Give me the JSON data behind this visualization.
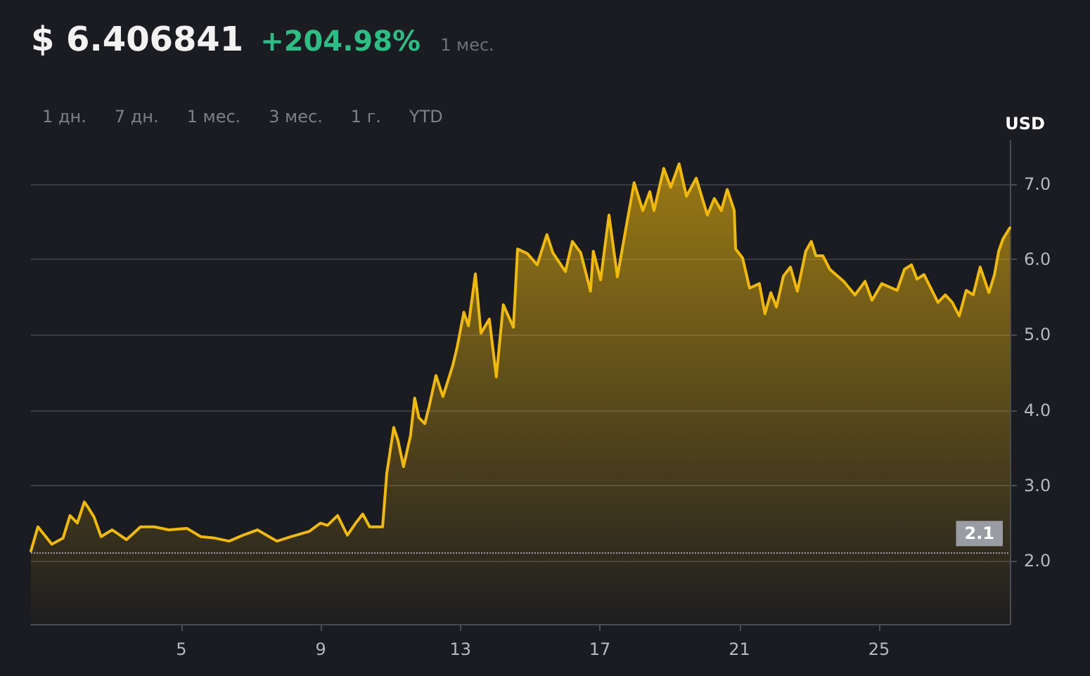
{
  "chart_data": {
    "type": "area",
    "title": "$ 6.406841",
    "subtitle": "+204.98%",
    "ylabel": "USD",
    "annotations": [
      "1 мес.",
      "1 дн.",
      "7 дн.",
      "1 мес.",
      "3 мес.",
      "1 г.",
      "YTD"
    ],
    "x": [
      0.69,
      0.89,
      1.29,
      1.61,
      1.81,
      2.02,
      2.22,
      2.34,
      2.5,
      2.7,
      3.02,
      3.43,
      3.83,
      4.23,
      4.64,
      5.16,
      5.56,
      5.97,
      6.37,
      6.77,
      7.18,
      7.74,
      8.15,
      8.67,
      8.99,
      9.19,
      9.48,
      9.76,
      10.0,
      10.2,
      10.4,
      10.77,
      10.89,
      11.09,
      11.21,
      11.37,
      11.57,
      11.69,
      11.81,
      11.98,
      12.1,
      12.3,
      12.5,
      12.78,
      12.9,
      13.1,
      13.23,
      13.43,
      13.59,
      13.83,
      14.03,
      14.23,
      14.52,
      14.64,
      14.92,
      15.2,
      15.48,
      15.65,
      16.01,
      16.21,
      16.45,
      16.73,
      16.81,
      17.02,
      17.26,
      17.5,
      17.74,
      17.98,
      18.23,
      18.43,
      18.55,
      18.83,
      19.03,
      19.27,
      19.48,
      19.76,
      20.08,
      20.28,
      20.48,
      20.65,
      20.85,
      20.89,
      21.09,
      21.29,
      21.57,
      21.73,
      21.9,
      22.06,
      22.26,
      22.46,
      22.66,
      22.9,
      23.06,
      23.19,
      23.39,
      23.59,
      23.99,
      24.31,
      24.6,
      24.8,
      25.08,
      25.52,
      25.73,
      25.93,
      26.09,
      26.29,
      26.69,
      26.9,
      27.1,
      27.3,
      27.5,
      27.7,
      27.9,
      28.15,
      28.31,
      28.43,
      28.55,
      28.75
    ],
    "series": [
      {
        "color": "#f0b90b",
        "values": [
          2.13,
          2.45,
          2.22,
          2.3,
          2.6,
          2.5,
          2.78,
          2.7,
          2.58,
          2.32,
          2.41,
          2.28,
          2.45,
          2.45,
          2.41,
          2.43,
          2.32,
          2.3,
          2.26,
          2.34,
          2.41,
          2.26,
          2.32,
          2.39,
          2.5,
          2.47,
          2.6,
          2.34,
          2.5,
          2.62,
          2.45,
          2.45,
          3.16,
          3.77,
          3.6,
          3.25,
          3.66,
          4.16,
          3.9,
          3.82,
          4.04,
          4.46,
          4.18,
          4.59,
          4.82,
          5.3,
          5.12,
          5.81,
          5.02,
          5.21,
          4.44,
          5.4,
          5.1,
          6.14,
          6.08,
          5.93,
          6.33,
          6.09,
          5.84,
          6.24,
          6.09,
          5.58,
          6.11,
          5.73,
          6.59,
          5.77,
          6.4,
          7.02,
          6.65,
          6.9,
          6.65,
          7.21,
          6.96,
          7.27,
          6.84,
          7.08,
          6.59,
          6.81,
          6.65,
          6.93,
          6.65,
          6.14,
          6.02,
          5.62,
          5.68,
          5.28,
          5.56,
          5.37,
          5.78,
          5.9,
          5.58,
          6.11,
          6.24,
          6.05,
          6.05,
          5.87,
          5.71,
          5.53,
          5.71,
          5.46,
          5.68,
          5.59,
          5.87,
          5.93,
          5.74,
          5.8,
          5.43,
          5.53,
          5.43,
          5.25,
          5.59,
          5.53,
          5.9,
          5.56,
          5.8,
          6.11,
          6.27,
          6.42
        ]
      }
    ],
    "xlim": [
      0.69,
      28.75
    ],
    "xticks": [
      5,
      9,
      13,
      17,
      21,
      25
    ],
    "ylim": [
      1.16,
      7.58
    ],
    "yticks": [
      {
        "value": 2,
        "label": "2.0"
      },
      {
        "value": 3,
        "label": "3.0"
      },
      {
        "value": 4,
        "label": "4.0"
      },
      {
        "value": 5,
        "label": "5.0"
      },
      {
        "value": 6,
        "label": "6.0"
      },
      {
        "value": 7,
        "label": "7.0"
      }
    ],
    "ref_lines": [
      {
        "axis": "y",
        "value": 2.1,
        "label": "2.1",
        "color": "#9a9ca3",
        "line_style": "dotted"
      }
    ],
    "grid": "y",
    "marker": "none",
    "line_style": "solid"
  }
}
